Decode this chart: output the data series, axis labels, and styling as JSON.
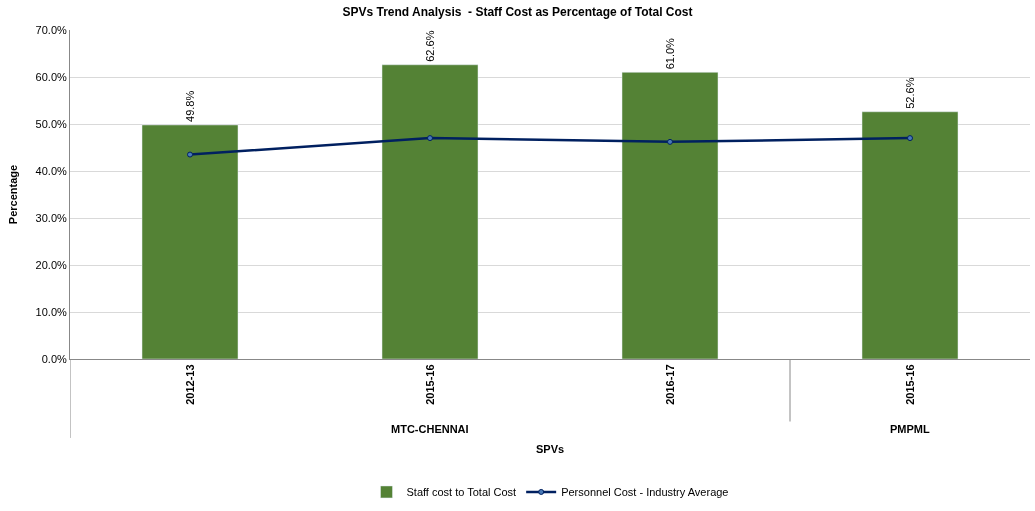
{
  "chart_data": {
    "type": "bar",
    "title": "SPVs Trend Analysis  - Staff Cost as Percentage of Total Cost",
    "xlabel": "SPVs",
    "ylabel": "Percentage",
    "categories": [
      "2012-13",
      "2015-16",
      "2016-17",
      "2015-16"
    ],
    "series": [
      {
        "name": "Staff cost to Total Cost",
        "color": "#548235",
        "values": [
          49.8,
          62.6,
          61.0,
          52.6
        ],
        "value_labels": [
          "49.8%",
          "62.6%",
          "61.0%",
          "52.6%"
        ]
      },
      {
        "name": "Personnel Cost - Industry Average",
        "color": "#002060",
        "type": "line",
        "marker": "circle",
        "values": [
          43.5,
          47.0,
          46.2,
          47.0
        ]
      }
    ],
    "annotations": [
      "MTC-CHENNAI",
      "PMPML"
    ],
    "ylim": [
      0,
      70
    ],
    "yticks": [
      {
        "value": 0,
        "label": "0.0%"
      },
      {
        "value": 10,
        "label": "10.0%"
      },
      {
        "value": 20,
        "label": "20.0%"
      },
      {
        "value": 30,
        "label": "30.0%"
      },
      {
        "value": 40,
        "label": "40.0%"
      },
      {
        "value": 50,
        "label": "50.0%"
      },
      {
        "value": 60,
        "label": "60.0%"
      },
      {
        "value": 70,
        "label": "70.0%"
      }
    ],
    "grid": "y",
    "legend": "bottom"
  }
}
